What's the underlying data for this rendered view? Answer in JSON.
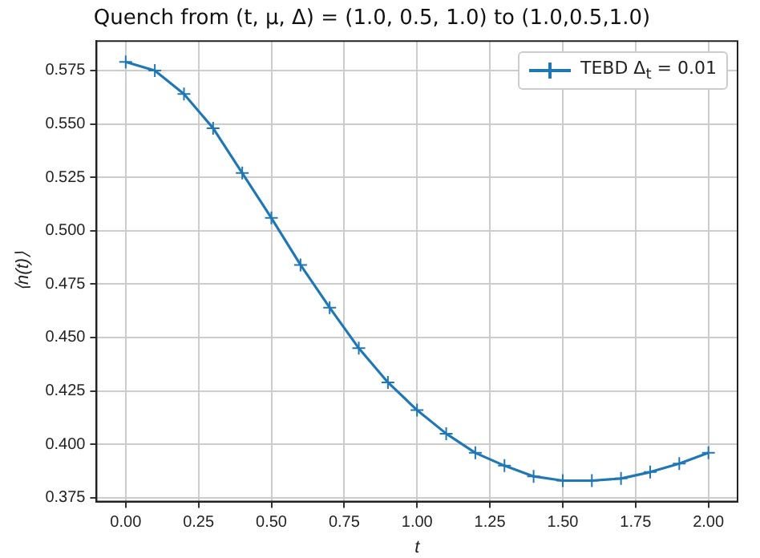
{
  "chart_data": {
    "type": "line",
    "title": "Quench from (t, μ, Δ) = (1.0, 0.5, 1.0) to (1.0,0.5,1.0)",
    "xlabel": "t",
    "ylabel": "⟨n(t)⟩",
    "x": [
      0,
      0.1,
      0.2,
      0.3,
      0.4,
      0.5,
      0.6,
      0.7,
      0.8,
      0.9,
      1.0,
      1.1,
      1.2,
      1.3,
      1.4,
      1.5,
      1.6,
      1.7,
      1.8,
      1.9,
      2.0
    ],
    "series": [
      {
        "name": "TEBD Δ$_{t}$ =  0.01",
        "color": "#1f77b4",
        "values": [
          0.579,
          0.575,
          0.564,
          0.548,
          0.527,
          0.506,
          0.484,
          0.464,
          0.445,
          0.429,
          0.416,
          0.405,
          0.396,
          0.39,
          0.385,
          0.383,
          0.383,
          0.384,
          0.387,
          0.391,
          0.396
        ]
      }
    ],
    "xlim": [
      -0.1,
      2.1
    ],
    "ylim": [
      0.3732,
      0.5888
    ],
    "xticks": [
      {
        "value": 0,
        "label": "0.00"
      },
      {
        "value": 0.25,
        "label": "0.25"
      },
      {
        "value": 0.5,
        "label": "0.50"
      },
      {
        "value": 0.75,
        "label": "0.75"
      },
      {
        "value": 1,
        "label": "1.00"
      },
      {
        "value": 1.25,
        "label": "1.25"
      },
      {
        "value": 1.5,
        "label": "1.50"
      },
      {
        "value": 1.75,
        "label": "1.75"
      },
      {
        "value": 2,
        "label": "2.00"
      }
    ],
    "yticks": [
      0.375,
      {
        "value": 0.4,
        "label": "0.400"
      },
      0.425,
      {
        "value": 0.45,
        "label": "0.450"
      },
      0.475,
      {
        "value": 0.5,
        "label": "0.500"
      },
      0.525,
      {
        "value": 0.55,
        "label": "0.550"
      },
      0.575
    ],
    "grid": true,
    "legend": "top right",
    "marker": "cross",
    "line_style": "solid"
  }
}
